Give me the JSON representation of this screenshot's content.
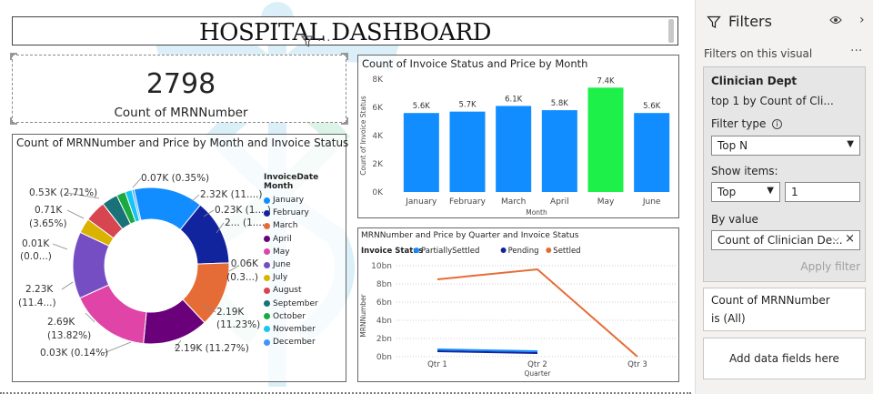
{
  "dashboard": {
    "title": "HOSPITAL DASHBOARD"
  },
  "kpi_card": {
    "value": "2798",
    "label": "Count of MRNNumber"
  },
  "donut": {
    "title": "Count of MRNNumber and Price by Month and Invoice Status",
    "legend_title": "InvoiceDate Month",
    "legend": [
      {
        "label": "January",
        "color": "#118DFF"
      },
      {
        "label": "February",
        "color": "#12239E"
      },
      {
        "label": "March",
        "color": "#E66C37"
      },
      {
        "label": "April",
        "color": "#6B007B"
      },
      {
        "label": "May",
        "color": "#E044A7"
      },
      {
        "label": "June",
        "color": "#744EC2"
      },
      {
        "label": "July",
        "color": "#D9B300"
      },
      {
        "label": "August",
        "color": "#D64550"
      },
      {
        "label": "September",
        "color": "#197278"
      },
      {
        "label": "October",
        "color": "#1AAB40"
      },
      {
        "label": "November",
        "color": "#15C6F4"
      },
      {
        "label": "December",
        "color": "#4092FF"
      }
    ],
    "labels": [
      "0.07K (0.35%)",
      "2.32K (11....)",
      "0.23K (1....)",
      "2... (1....",
      "0.06K",
      "(0.3...)",
      "2.19K",
      "(11.23%)",
      "2.19K (11.27%)",
      "0.03K (0.14%)",
      "2.69K",
      "(13.82%)",
      "2.23K",
      "(11.4...)",
      "0.01K",
      "(0.0...)",
      "0.71K",
      "(3.65%)",
      "0.53K (2.71%)"
    ]
  },
  "chart_data": [
    {
      "type": "bar",
      "title": "Count of Invoice Status and Price by Month",
      "xlabel": "Month",
      "ylabel": "Count of Invoice Status",
      "categories": [
        "January",
        "February",
        "March",
        "April",
        "May",
        "June"
      ],
      "values": [
        5600,
        5700,
        6100,
        5800,
        7400,
        5600
      ],
      "data_labels": [
        "5.6K",
        "5.7K",
        "6.1K",
        "5.8K",
        "7.4K",
        "5.6K"
      ],
      "yticks": [
        "0K",
        "2K",
        "4K",
        "6K",
        "8K"
      ],
      "ylim": [
        0,
        8000
      ],
      "bar_color": "#118DFF",
      "highlight_color": "#1EF04A",
      "highlight_index": 4
    },
    {
      "type": "line",
      "title": "MRNNumber and Price by Quarter and Invoice Status",
      "legend_title": "Invoice Status",
      "xlabel": "Quarter",
      "ylabel": "MRNNumber",
      "categories": [
        "Qtr 1",
        "Qtr 2",
        "Qtr 3"
      ],
      "yticks": [
        "0bn",
        "2bn",
        "4bn",
        "6bn",
        "8bn",
        "10bn"
      ],
      "ylim": [
        0,
        10
      ],
      "series": [
        {
          "name": "PartiallySettled",
          "color": "#118DFF",
          "values": [
            0.8,
            0.6,
            null
          ]
        },
        {
          "name": "Pending",
          "color": "#12239E",
          "values": [
            0.6,
            0.4,
            null
          ]
        },
        {
          "name": "Settled",
          "color": "#E66C37",
          "values": [
            8.5,
            9.6,
            0.0
          ]
        }
      ]
    },
    {
      "type": "pie",
      "title": "Count of MRNNumber and Price by Month and Invoice Status",
      "categories": [
        "January",
        "February",
        "March",
        "April",
        "May",
        "June",
        "July",
        "August",
        "September",
        "October",
        "November",
        "December"
      ],
      "values": [
        2.32,
        2.19,
        2.19,
        2.19,
        2.69,
        2.23,
        0.5,
        0.71,
        0.53,
        0.3,
        0.23,
        0.07
      ]
    }
  ],
  "filters": {
    "header": "Filters",
    "subheader": "Filters on this visual",
    "more": "···",
    "card1": {
      "field": "Clinician Dept",
      "summary": "top 1 by Count of Cli...",
      "filter_type_label": "Filter type",
      "filter_type_value": "Top N",
      "show_items_label": "Show items:",
      "show_items_dir": "Top",
      "show_items_count": "1",
      "by_value_label": "By value",
      "by_value_field": "Count of Clinician De...",
      "apply": "Apply filter"
    },
    "card2": {
      "field": "Count of MRNNumber",
      "summary": "is (All)"
    },
    "card3": {
      "label": "Add data fields here"
    }
  }
}
